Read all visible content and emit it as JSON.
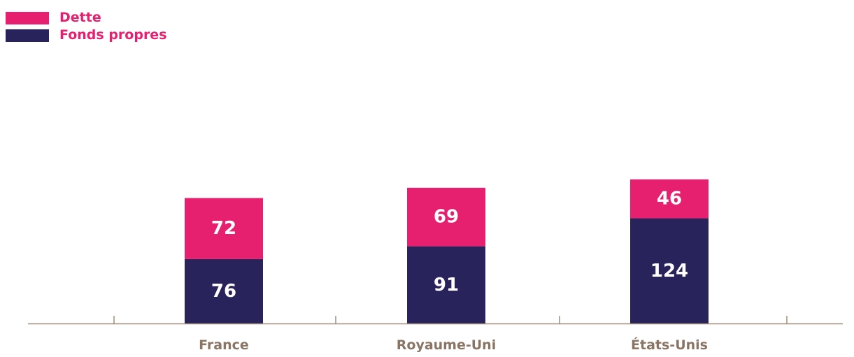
{
  "chart_data": {
    "type": "bar",
    "stacked": true,
    "categories": [
      "France",
      "Royaume-Uni",
      "États-Unis"
    ],
    "series": [
      {
        "name": "Fonds propres",
        "values": [
          76,
          91,
          124
        ],
        "color": "#29235c"
      },
      {
        "name": "Dette",
        "values": [
          72,
          69,
          46
        ],
        "color": "#e6206f"
      }
    ],
    "legend": {
      "placement": "top-left",
      "items": [
        {
          "label": "Dette",
          "color": "#e6206f"
        },
        {
          "label": "Fonds propres",
          "color": "#29235c"
        }
      ]
    },
    "axis_color": "#a18d7c",
    "category_label_color": "#8a7564",
    "legend_text_color": "#e6206f",
    "ylim": [
      0,
      170
    ],
    "grid": false
  }
}
